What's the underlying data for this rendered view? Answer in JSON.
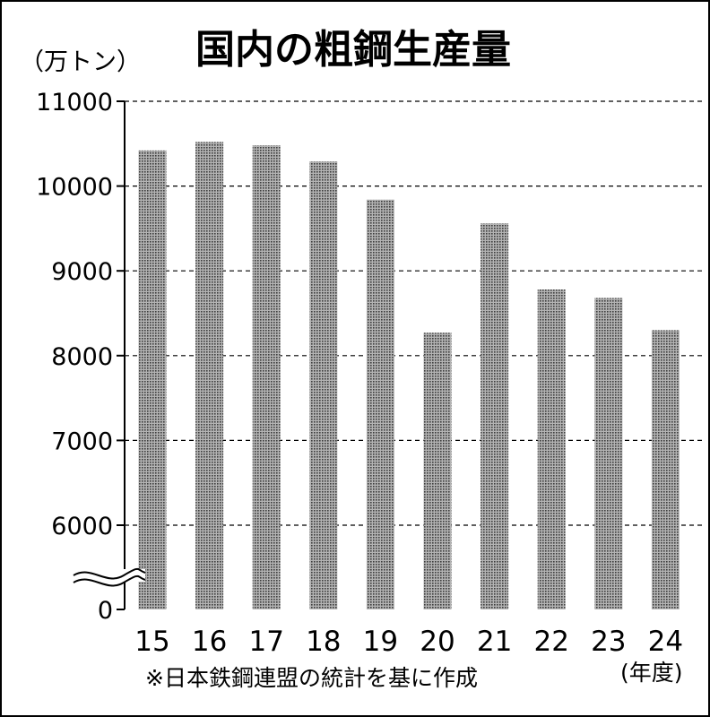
{
  "chart_data": {
    "type": "bar",
    "title": "国内の粗鋼生産量",
    "ylabel": "（万トン）",
    "xlabel": "(年度)",
    "categories": [
      "15",
      "16",
      "17",
      "18",
      "19",
      "20",
      "21",
      "22",
      "23",
      "24"
    ],
    "values": [
      10420,
      10520,
      10480,
      10290,
      9840,
      8270,
      9560,
      8780,
      8680,
      8300
    ],
    "yticks": [
      "0",
      "6000",
      "7000",
      "8000",
      "9000",
      "10000",
      "11000"
    ],
    "ytick_values": [
      0,
      6000,
      7000,
      8000,
      9000,
      10000,
      11000
    ],
    "ylim": [
      0,
      11000
    ],
    "axis_break": true,
    "grid": "dashed horizontal",
    "legend": "none",
    "bar_fill": "dotted gray",
    "bar_color": "#8f8f8f",
    "note": "※日本鉄鋼連盟の統計を基に作成"
  }
}
